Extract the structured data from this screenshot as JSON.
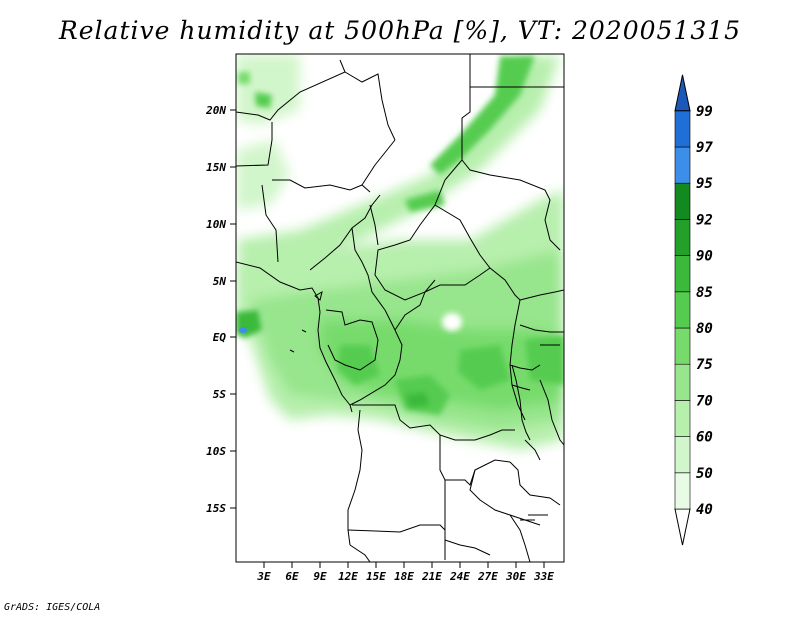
{
  "title": "Relative humidity at 500hPa [%], VT: 2020051315",
  "credit": "GrADS: IGES/COLA",
  "map": {
    "lat_ticks": [
      "20N",
      "15N",
      "10N",
      "5N",
      "EQ",
      "5S",
      "10S",
      "15S"
    ],
    "lon_ticks": [
      "3E",
      "6E",
      "9E",
      "12E",
      "15E",
      "18E",
      "21E",
      "24E",
      "27E",
      "30E",
      "33E"
    ]
  },
  "colorbar": {
    "labels": [
      "40",
      "50",
      "60",
      "70",
      "75",
      "80",
      "85",
      "90",
      "92",
      "95",
      "97",
      "99"
    ],
    "colors": [
      "#e8fbe4",
      "#d2f6cb",
      "#b7efad",
      "#97e58c",
      "#77db6c",
      "#55cc4f",
      "#3ab93a",
      "#22a02a",
      "#128a1f",
      "#3d8ee8",
      "#1f6fd6",
      "#1b58b8"
    ]
  }
}
